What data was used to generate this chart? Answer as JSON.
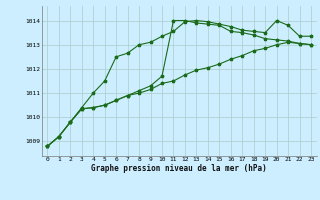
{
  "title": "Graphe pression niveau de la mer (hPa)",
  "bg_color": "#cceeff",
  "grid_color": "#aacccc",
  "line_color": "#1a6b1a",
  "x_ticks": [
    0,
    1,
    2,
    3,
    4,
    5,
    6,
    7,
    8,
    9,
    10,
    11,
    12,
    13,
    14,
    15,
    16,
    17,
    18,
    19,
    20,
    21,
    22,
    23
  ],
  "y_ticks": [
    1009,
    1010,
    1011,
    1012,
    1013,
    1014
  ],
  "ylim": [
    1008.4,
    1014.6
  ],
  "xlim": [
    -0.5,
    23.5
  ],
  "series": [
    [
      1008.8,
      1009.2,
      1009.8,
      1010.4,
      1011.0,
      1011.5,
      1012.5,
      1012.65,
      1013.0,
      1013.1,
      1013.35,
      1013.55,
      1013.95,
      1014.0,
      1013.95,
      1013.85,
      1013.75,
      1013.6,
      1013.55,
      1013.5,
      1014.0,
      1013.8,
      1013.35,
      1013.35
    ],
    [
      1008.8,
      1009.2,
      1009.8,
      1010.35,
      1010.4,
      1010.5,
      1010.7,
      1010.9,
      1011.1,
      1011.3,
      1011.7,
      1014.0,
      1014.0,
      1013.9,
      1013.85,
      1013.8,
      1013.55,
      1013.5,
      1013.4,
      1013.25,
      1013.2,
      1013.15,
      1013.05,
      1013.0
    ],
    [
      1008.8,
      1009.2,
      1009.8,
      1010.35,
      1010.4,
      1010.5,
      1010.7,
      1010.9,
      1011.0,
      1011.15,
      1011.4,
      1011.5,
      1011.75,
      1011.95,
      1012.05,
      1012.2,
      1012.4,
      1012.55,
      1012.75,
      1012.85,
      1013.0,
      1013.1,
      1013.05,
      1013.0
    ]
  ],
  "marker_size": 2.5,
  "line_width": 0.8,
  "title_fontsize": 5.5,
  "tick_fontsize": 4.5
}
